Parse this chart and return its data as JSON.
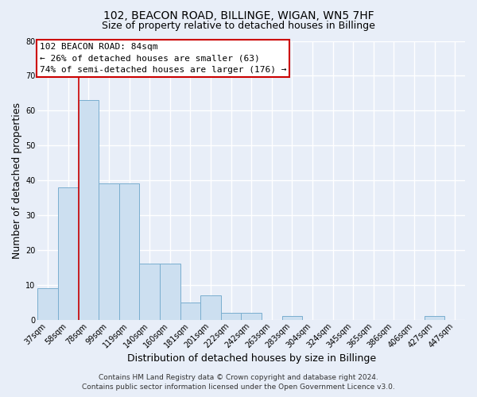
{
  "title": "102, BEACON ROAD, BILLINGE, WIGAN, WN5 7HF",
  "subtitle": "Size of property relative to detached houses in Billinge",
  "xlabel": "Distribution of detached houses by size in Billinge",
  "ylabel": "Number of detached properties",
  "bar_labels": [
    "37sqm",
    "58sqm",
    "78sqm",
    "99sqm",
    "119sqm",
    "140sqm",
    "160sqm",
    "181sqm",
    "201sqm",
    "222sqm",
    "242sqm",
    "263sqm",
    "283sqm",
    "304sqm",
    "324sqm",
    "345sqm",
    "365sqm",
    "386sqm",
    "406sqm",
    "427sqm",
    "447sqm"
  ],
  "bar_values": [
    9,
    38,
    63,
    39,
    39,
    16,
    16,
    5,
    7,
    2,
    2,
    0,
    1,
    0,
    0,
    0,
    0,
    0,
    0,
    1,
    0
  ],
  "bar_color": "#ccdff0",
  "bar_edge_color": "#7aaecf",
  "highlight_line_color": "#cc0000",
  "highlight_bar_index": 2,
  "ylim": [
    0,
    80
  ],
  "annotation_text_line1": "102 BEACON ROAD: 84sqm",
  "annotation_text_line2": "← 26% of detached houses are smaller (63)",
  "annotation_text_line3": "74% of semi-detached houses are larger (176) →",
  "annotation_box_color": "#ffffff",
  "annotation_box_edge_color": "#cc0000",
  "footer_line1": "Contains HM Land Registry data © Crown copyright and database right 2024.",
  "footer_line2": "Contains public sector information licensed under the Open Government Licence v3.0.",
  "background_color": "#e8eef8",
  "grid_color": "#ffffff",
  "title_fontsize": 10,
  "subtitle_fontsize": 9,
  "axis_label_fontsize": 9,
  "tick_fontsize": 7,
  "footer_fontsize": 6.5,
  "annotation_fontsize": 8
}
